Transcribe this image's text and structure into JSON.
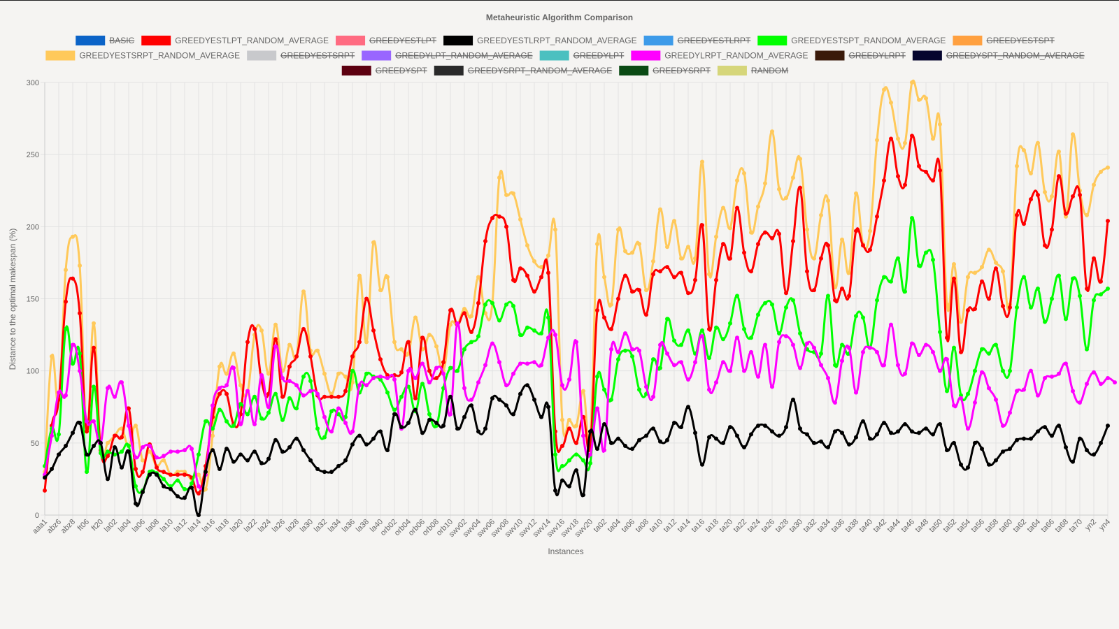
{
  "chart_data": {
    "type": "line",
    "title": "Metaheuristic Algorithm Comparison",
    "xlabel": "Instances",
    "ylabel": "Distance to the optimal makespan (%)",
    "ylim": [
      0,
      300
    ],
    "y_ticks": [
      0,
      50,
      100,
      150,
      200,
      250,
      300
    ],
    "grid": true,
    "legend_position": "top-center",
    "x_tick_labels": [
      "aaa1",
      "abz6",
      "abz8",
      "ft06",
      "ft20",
      "la02",
      "la04",
      "la06",
      "la08",
      "la10",
      "la12",
      "la14",
      "la16",
      "la18",
      "la20",
      "la22",
      "la24",
      "la26",
      "la28",
      "la30",
      "la32",
      "la34",
      "la36",
      "la38",
      "la40",
      "orb02",
      "orb04",
      "orb06",
      "orb08",
      "orb10",
      "swv02",
      "swv04",
      "swv06",
      "swv08",
      "swv10",
      "swv12",
      "swv14",
      "swv16",
      "swv18",
      "swv20",
      "ta02",
      "ta04",
      "ta06",
      "ta08",
      "ta10",
      "ta12",
      "ta14",
      "ta16",
      "ta18",
      "ta20",
      "ta22",
      "ta24",
      "ta26",
      "ta28",
      "ta30",
      "ta32",
      "ta34",
      "ta36",
      "ta38",
      "ta40",
      "ta42",
      "ta44",
      "ta46",
      "ta48",
      "ta50",
      "ta52",
      "ta54",
      "ta56",
      "ta58",
      "ta60",
      "ta62",
      "ta64",
      "ta66",
      "ta68",
      "ta70",
      "yn2",
      "yn4"
    ],
    "legend": [
      {
        "name": "BASIC",
        "color": "#0b63c7",
        "hidden": true
      },
      {
        "name": "GREEDYESTLPT_RANDOM_AVERAGE",
        "color": "#ff0000",
        "hidden": false
      },
      {
        "name": "GREEDYESTLPT",
        "color": "#ff6b81",
        "hidden": true
      },
      {
        "name": "GREEDYESTLRPT_RANDOM_AVERAGE",
        "color": "#000000",
        "hidden": false
      },
      {
        "name": "GREEDYESTLRPT",
        "color": "#3d9be9",
        "hidden": true
      },
      {
        "name": "GREEDYESTSPT_RANDOM_AVERAGE",
        "color": "#00ff00",
        "hidden": false
      },
      {
        "name": "GREEDYESTSPT",
        "color": "#ffa040",
        "hidden": true
      },
      {
        "name": "GREEDYESTSRPT_RANDOM_AVERAGE",
        "color": "#ffc95a",
        "hidden": false
      },
      {
        "name": "GREEDYESTSRPT",
        "color": "#c8c9cc",
        "hidden": true
      },
      {
        "name": "GREEDYLPT_RANDOM_AVERAGE",
        "color": "#9966ff",
        "hidden": true
      },
      {
        "name": "GREEDYLPT",
        "color": "#4bc0c0",
        "hidden": true
      },
      {
        "name": "GREEDYLRPT_RANDOM_AVERAGE",
        "color": "#ff00ff",
        "hidden": false
      },
      {
        "name": "GREEDYLRPT",
        "color": "#3a1a0a",
        "hidden": true
      },
      {
        "name": "GREEDYSPT_RANDOM_AVERAGE",
        "color": "#05052e",
        "hidden": true
      },
      {
        "name": "GREEDYSPT",
        "color": "#5c0010",
        "hidden": true
      },
      {
        "name": "GREEDYSRPT_RANDOM_AVERAGE",
        "color": "#2a2a2a",
        "hidden": true
      },
      {
        "name": "GREEDYSRPT",
        "color": "#0a4a14",
        "hidden": true
      },
      {
        "name": "RANDOM",
        "color": "#d6d67a",
        "hidden": true
      }
    ],
    "series": [
      {
        "name": "GREEDYESTSRPT_RANDOM_AVERAGE",
        "color": "#ffc95a",
        "values": [
          30,
          110,
          80,
          170,
          193,
          173,
          58,
          133,
          45,
          50,
          55,
          60,
          48,
          62,
          38,
          44,
          34,
          38,
          28,
          30,
          30,
          25,
          28,
          18,
          55,
          103,
          98,
          112,
          90,
          85,
          125,
          128,
          98,
          132,
          100,
          118,
          110,
          155,
          114,
          114,
          98,
          84,
          98,
          96,
          92,
          166,
          120,
          189,
          156,
          165,
          120,
          115,
          112,
          137,
          115,
          125,
          117,
          100,
          132,
          132,
          143,
          138,
          165,
          140,
          147,
          234,
          222,
          223,
          205,
          187,
          176,
          172,
          180,
          198,
          66,
          66,
          62,
          86,
          55,
          188,
          165,
          146,
          198,
          183,
          182,
          188,
          156,
          176,
          212,
          186,
          204,
          178,
          186,
          178,
          245,
          167,
          193,
          213,
          199,
          232,
          237,
          196,
          214,
          230,
          266,
          226,
          220,
          234,
          247,
          198,
          178,
          208,
          218,
          158,
          191,
          168,
          223,
          188,
          197,
          260,
          295,
          286,
          261,
          258,
          300,
          288,
          289,
          261,
          271,
          146,
          174,
          134,
          165,
          168,
          172,
          184,
          175,
          169,
          146,
          242,
          253,
          237,
          258,
          224,
          221,
          252,
          207,
          264,
          225,
          208,
          229,
          238,
          241
        ]
      },
      {
        "name": "GREEDYESTLPT_RANDOM_AVERAGE",
        "color": "#ff0000",
        "values": [
          17,
          62,
          80,
          148,
          164,
          140,
          58,
          116,
          45,
          41,
          55,
          54,
          74,
          32,
          30,
          49,
          33,
          30,
          28,
          28,
          28,
          26,
          15,
          34,
          68,
          84,
          84,
          63,
          70,
          120,
          129,
          93,
          84,
          122,
          82,
          103,
          110,
          129,
          110,
          83,
          82,
          82,
          82,
          86,
          110,
          120,
          150,
          128,
          108,
          97,
          97,
          99,
          120,
          81,
          123,
          100,
          95,
          106,
          142,
          132,
          140,
          127,
          147,
          190,
          206,
          207,
          200,
          163,
          171,
          166,
          155,
          165,
          168,
          58,
          48,
          60,
          50,
          68,
          48,
          142,
          137,
          129,
          150,
          166,
          155,
          156,
          139,
          167,
          169,
          172,
          165,
          168,
          154,
          163,
          201,
          129,
          163,
          188,
          178,
          213,
          182,
          169,
          188,
          196,
          192,
          195,
          154,
          190,
          227,
          169,
          156,
          178,
          187,
          149,
          157,
          152,
          197,
          187,
          184,
          207,
          232,
          261,
          235,
          229,
          263,
          242,
          238,
          232,
          239,
          123,
          164,
          113,
          142,
          143,
          162,
          150,
          171,
          145,
          144,
          208,
          202,
          219,
          222,
          187,
          198,
          235,
          209,
          221,
          222,
          157,
          178,
          162,
          204
        ]
      },
      {
        "name": "GREEDYESTSPT_RANDOM_AVERAGE",
        "color": "#00ff00",
        "values": [
          34,
          60,
          56,
          129,
          105,
          112,
          30,
          89,
          43,
          44,
          42,
          44,
          48,
          20,
          17,
          30,
          29,
          25,
          20,
          24,
          18,
          22,
          42,
          65,
          60,
          73,
          65,
          62,
          77,
          70,
          82,
          67,
          71,
          84,
          66,
          81,
          74,
          96,
          93,
          60,
          54,
          72,
          70,
          68,
          100,
          85,
          98,
          96,
          94,
          85,
          73,
          82,
          89,
          72,
          91,
          70,
          62,
          88,
          102,
          100,
          115,
          120,
          124,
          146,
          147,
          135,
          146,
          145,
          125,
          130,
          128,
          126,
          137,
          42,
          34,
          38,
          42,
          38,
          36,
          96,
          87,
          80,
          108,
          114,
          110,
          87,
          84,
          108,
          102,
          136,
          121,
          118,
          128,
          112,
          128,
          109,
          130,
          122,
          133,
          152,
          129,
          123,
          139,
          147,
          146,
          126,
          144,
          149,
          126,
          115,
          113,
          112,
          152,
          104,
          118,
          112,
          138,
          137,
          116,
          149,
          165,
          162,
          178,
          155,
          206,
          173,
          182,
          177,
          127,
          86,
          116,
          83,
          84,
          100,
          115,
          112,
          118,
          100,
          100,
          144,
          165,
          144,
          157,
          134,
          150,
          166,
          136,
          164,
          152,
          115,
          149,
          153,
          157
        ]
      },
      {
        "name": "GREEDYLRPT_RANDOM_AVERAGE",
        "color": "#ff00ff",
        "values": [
          28,
          55,
          85,
          83,
          118,
          100,
          65,
          65,
          50,
          88,
          82,
          92,
          62,
          40,
          47,
          48,
          40,
          41,
          44,
          44,
          45,
          46,
          20,
          28,
          76,
          88,
          90,
          102,
          63,
          86,
          63,
          97,
          75,
          117,
          95,
          93,
          90,
          83,
          86,
          84,
          68,
          58,
          74,
          64,
          58,
          90,
          90,
          95,
          96,
          95,
          94,
          60,
          100,
          95,
          105,
          92,
          102,
          98,
          70,
          133,
          88,
          80,
          92,
          104,
          119,
          106,
          90,
          98,
          105,
          105,
          106,
          104,
          123,
          125,
          90,
          94,
          120,
          55,
          42,
          74,
          45,
          115,
          113,
          126,
          115,
          114,
          89,
          82,
          118,
          112,
          104,
          106,
          94,
          106,
          124,
          87,
          92,
          106,
          100,
          123,
          100,
          113,
          96,
          118,
          89,
          120,
          124,
          118,
          102,
          119,
          116,
          104,
          95,
          78,
          107,
          116,
          85,
          113,
          116,
          113,
          104,
          132,
          104,
          98,
          119,
          111,
          118,
          113,
          100,
          108,
          76,
          81,
          60,
          78,
          99,
          88,
          80,
          62,
          71,
          86,
          87,
          100,
          83,
          95,
          96,
          98,
          105,
          86,
          78,
          91,
          99,
          91,
          95,
          92
        ]
      },
      {
        "name": "GREEDYESTLRPT_RANDOM_AVERAGE",
        "color": "#000000",
        "values": [
          26,
          32,
          42,
          48,
          57,
          64,
          42,
          48,
          50,
          25,
          47,
          33,
          44,
          8,
          16,
          28,
          28,
          20,
          18,
          13,
          12,
          19,
          0,
          30,
          45,
          32,
          46,
          37,
          42,
          38,
          44,
          36,
          39,
          52,
          44,
          47,
          53,
          45,
          38,
          32,
          30,
          30,
          34,
          38,
          49,
          55,
          49,
          53,
          58,
          45,
          70,
          61,
          64,
          73,
          57,
          66,
          64,
          62,
          82,
          60,
          68,
          76,
          58,
          60,
          81,
          80,
          76,
          70,
          84,
          90,
          80,
          68,
          75,
          17,
          24,
          20,
          31,
          14,
          58,
          46,
          63,
          50,
          53,
          48,
          46,
          52,
          55,
          60,
          51,
          52,
          64,
          61,
          75,
          57,
          35,
          54,
          53,
          50,
          61,
          55,
          47,
          56,
          62,
          62,
          58,
          55,
          61,
          80,
          60,
          56,
          50,
          51,
          47,
          58,
          57,
          49,
          54,
          65,
          53,
          56,
          64,
          57,
          58,
          63,
          58,
          57,
          60,
          56,
          63,
          45,
          50,
          35,
          33,
          50,
          46,
          35,
          38,
          44,
          46,
          52,
          53,
          53,
          58,
          61,
          55,
          62,
          47,
          37,
          53,
          45,
          42,
          50,
          62
        ]
      }
    ]
  }
}
